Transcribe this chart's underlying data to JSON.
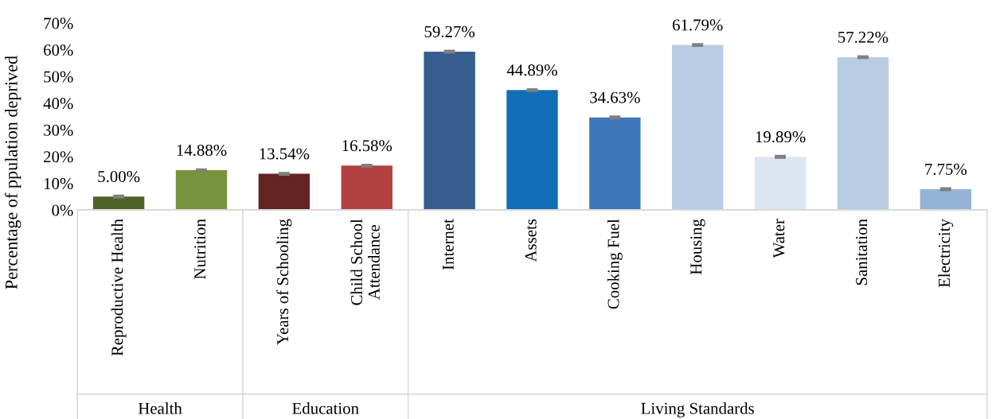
{
  "chart_data": {
    "type": "bar",
    "ylabel": "Percentage of ppulation deprived",
    "categories": [
      "Reproductive Health",
      "Nutrition",
      "Years of Schooling",
      "Child School\nAttendance",
      "Internet",
      "Assets",
      "Cooking Fuel",
      "Housing",
      "Water",
      "Sanitation",
      "Electricity"
    ],
    "values": [
      5.0,
      14.88,
      13.54,
      16.58,
      59.27,
      44.89,
      34.63,
      61.79,
      19.89,
      57.22,
      7.75
    ],
    "errors": [
      0.3,
      0.3,
      0.3,
      0.3,
      0.3,
      0.3,
      0.3,
      0.3,
      0.3,
      0.3,
      0.3
    ],
    "value_labels": [
      "5.00%",
      "14.88%",
      "13.54%",
      "16.58%",
      "59.27%",
      "44.89%",
      "34.63%",
      "61.79%",
      "19.89%",
      "57.22%",
      "7.75%"
    ],
    "colors": [
      "#4f6228",
      "#77933c",
      "#632523",
      "#b24141",
      "#355d8e",
      "#136eb8",
      "#3e77b9",
      "#b8cce4",
      "#dce6f1",
      "#b8cce4",
      "#95b3d7"
    ],
    "ylim": [
      0,
      70
    ],
    "yticks": [
      {
        "value": 0,
        "label": "0%"
      },
      {
        "value": 10,
        "label": "10%"
      },
      {
        "value": 20,
        "label": "20%"
      },
      {
        "value": 30,
        "label": "30%"
      },
      {
        "value": 40,
        "label": "40%"
      },
      {
        "value": 50,
        "label": "50%"
      },
      {
        "value": 60,
        "label": "60%"
      },
      {
        "value": 70,
        "label": "70%"
      }
    ],
    "annotations": [
      "Health",
      "Education",
      "Living Standards"
    ],
    "grid": false,
    "legend": false
  }
}
